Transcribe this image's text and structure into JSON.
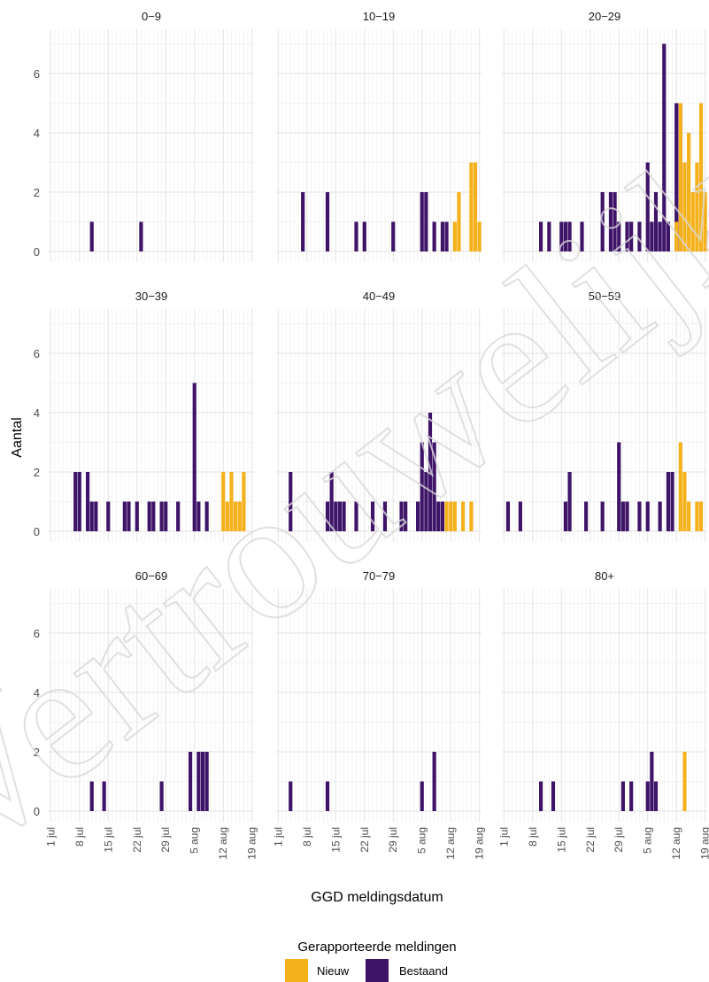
{
  "chart_data": {
    "type": "bar",
    "title": "",
    "xlabel": "GGD meldingsdatum",
    "ylabel": "Aantal",
    "ylim": [
      0,
      7.3
    ],
    "y_ticks": [
      0,
      2,
      4,
      6
    ],
    "x_range": [
      "2020-07-01",
      "2020-08-19"
    ],
    "x_ticks": [
      {
        "date": "2020-07-01",
        "label": "1 jul"
      },
      {
        "date": "2020-07-08",
        "label": "8 jul"
      },
      {
        "date": "2020-07-15",
        "label": "15 jul"
      },
      {
        "date": "2020-07-22",
        "label": "22 jul"
      },
      {
        "date": "2020-07-29",
        "label": "29 jul"
      },
      {
        "date": "2020-08-05",
        "label": "5 aug"
      },
      {
        "date": "2020-08-12",
        "label": "12 aug"
      },
      {
        "date": "2020-08-19",
        "label": "19 aug"
      }
    ],
    "grid": true,
    "layout": "facet 3x3 by age group",
    "legend": {
      "title": "Gerapporteerde meldingen",
      "position": "bottom",
      "entries": [
        {
          "name": "Nieuw",
          "color": "#F5B11C"
        },
        {
          "name": "Bestaand",
          "color": "#3E1468"
        }
      ]
    },
    "colors": {
      "Nieuw": "#F5B11C",
      "Bestaand": "#3E1468"
    },
    "facets": [
      {
        "label": "0−9",
        "series": [
          {
            "name": "Bestaand",
            "points": [
              [
                "2020-07-11",
                1
              ],
              [
                "2020-07-23",
                1
              ]
            ]
          },
          {
            "name": "Nieuw",
            "points": []
          }
        ]
      },
      {
        "label": "10−19",
        "series": [
          {
            "name": "Bestaand",
            "points": [
              [
                "2020-07-07",
                2
              ],
              [
                "2020-07-13",
                2
              ],
              [
                "2020-07-20",
                1
              ],
              [
                "2020-07-22",
                1
              ],
              [
                "2020-07-29",
                1
              ],
              [
                "2020-08-05",
                2
              ],
              [
                "2020-08-06",
                2
              ],
              [
                "2020-08-08",
                1
              ],
              [
                "2020-08-10",
                1
              ],
              [
                "2020-08-11",
                1
              ]
            ]
          },
          {
            "name": "Nieuw",
            "points": [
              [
                "2020-08-13",
                1
              ],
              [
                "2020-08-14",
                2
              ],
              [
                "2020-08-17",
                3
              ],
              [
                "2020-08-18",
                3
              ],
              [
                "2020-08-19",
                1
              ]
            ]
          }
        ]
      },
      {
        "label": "20−29",
        "series": [
          {
            "name": "Bestaand",
            "points": [
              [
                "2020-07-10",
                1
              ],
              [
                "2020-07-12",
                1
              ],
              [
                "2020-07-15",
                1
              ],
              [
                "2020-07-16",
                1
              ],
              [
                "2020-07-17",
                1
              ],
              [
                "2020-07-20",
                1
              ],
              [
                "2020-07-25",
                2
              ],
              [
                "2020-07-27",
                2
              ],
              [
                "2020-07-28",
                2
              ],
              [
                "2020-07-29",
                1
              ],
              [
                "2020-07-31",
                1
              ],
              [
                "2020-08-01",
                1
              ],
              [
                "2020-08-03",
                1
              ],
              [
                "2020-08-05",
                3
              ],
              [
                "2020-08-06",
                1
              ],
              [
                "2020-08-07",
                2
              ],
              [
                "2020-08-08",
                1
              ],
              [
                "2020-08-09",
                7
              ],
              [
                "2020-08-10",
                1
              ],
              [
                "2020-08-12",
                5
              ],
              [
                "2020-08-13",
                5
              ]
            ]
          },
          {
            "name": "Nieuw",
            "points": [
              [
                "2020-08-12",
                1
              ],
              [
                "2020-08-13",
                5
              ],
              [
                "2020-08-14",
                3
              ],
              [
                "2020-08-15",
                4
              ],
              [
                "2020-08-16",
                2
              ],
              [
                "2020-08-17",
                3
              ],
              [
                "2020-08-18",
                5
              ],
              [
                "2020-08-19",
                2
              ]
            ]
          }
        ]
      },
      {
        "label": "30−39",
        "series": [
          {
            "name": "Bestaand",
            "points": [
              [
                "2020-07-07",
                2
              ],
              [
                "2020-07-08",
                2
              ],
              [
                "2020-07-10",
                2
              ],
              [
                "2020-07-11",
                1
              ],
              [
                "2020-07-12",
                1
              ],
              [
                "2020-07-15",
                1
              ],
              [
                "2020-07-19",
                1
              ],
              [
                "2020-07-20",
                1
              ],
              [
                "2020-07-22",
                1
              ],
              [
                "2020-07-25",
                1
              ],
              [
                "2020-07-26",
                1
              ],
              [
                "2020-07-28",
                1
              ],
              [
                "2020-07-29",
                1
              ],
              [
                "2020-08-01",
                1
              ],
              [
                "2020-08-05",
                5
              ],
              [
                "2020-08-06",
                1
              ],
              [
                "2020-08-08",
                1
              ]
            ]
          },
          {
            "name": "Nieuw",
            "points": [
              [
                "2020-08-12",
                2
              ],
              [
                "2020-08-13",
                1
              ],
              [
                "2020-08-14",
                2
              ],
              [
                "2020-08-15",
                1
              ],
              [
                "2020-08-16",
                1
              ],
              [
                "2020-08-17",
                2
              ]
            ]
          }
        ]
      },
      {
        "label": "40−49",
        "series": [
          {
            "name": "Bestaand",
            "points": [
              [
                "2020-07-04",
                2
              ],
              [
                "2020-07-13",
                1
              ],
              [
                "2020-07-14",
                2
              ],
              [
                "2020-07-15",
                1
              ],
              [
                "2020-07-16",
                1
              ],
              [
                "2020-07-17",
                1
              ],
              [
                "2020-07-20",
                1
              ],
              [
                "2020-07-24",
                1
              ],
              [
                "2020-07-27",
                1
              ],
              [
                "2020-07-31",
                1
              ],
              [
                "2020-08-01",
                1
              ],
              [
                "2020-08-04",
                1
              ],
              [
                "2020-08-05",
                3
              ],
              [
                "2020-08-06",
                2
              ],
              [
                "2020-08-07",
                4
              ],
              [
                "2020-08-08",
                3
              ],
              [
                "2020-08-09",
                1
              ],
              [
                "2020-08-10",
                1
              ]
            ]
          },
          {
            "name": "Nieuw",
            "points": [
              [
                "2020-08-11",
                1
              ],
              [
                "2020-08-12",
                1
              ],
              [
                "2020-08-13",
                1
              ],
              [
                "2020-08-15",
                1
              ],
              [
                "2020-08-17",
                1
              ]
            ]
          }
        ]
      },
      {
        "label": "50−59",
        "series": [
          {
            "name": "Bestaand",
            "points": [
              [
                "2020-07-02",
                1
              ],
              [
                "2020-07-05",
                1
              ],
              [
                "2020-07-16",
                1
              ],
              [
                "2020-07-17",
                2
              ],
              [
                "2020-07-21",
                1
              ],
              [
                "2020-07-25",
                1
              ],
              [
                "2020-07-29",
                3
              ],
              [
                "2020-07-30",
                1
              ],
              [
                "2020-07-31",
                1
              ],
              [
                "2020-08-03",
                1
              ],
              [
                "2020-08-05",
                1
              ],
              [
                "2020-08-08",
                1
              ],
              [
                "2020-08-10",
                2
              ],
              [
                "2020-08-11",
                2
              ]
            ]
          },
          {
            "name": "Nieuw",
            "points": [
              [
                "2020-08-13",
                3
              ],
              [
                "2020-08-14",
                2
              ],
              [
                "2020-08-15",
                1
              ],
              [
                "2020-08-17",
                1
              ],
              [
                "2020-08-18",
                1
              ]
            ]
          }
        ]
      },
      {
        "label": "60−69",
        "series": [
          {
            "name": "Bestaand",
            "points": [
              [
                "2020-07-11",
                1
              ],
              [
                "2020-07-14",
                1
              ],
              [
                "2020-07-28",
                1
              ],
              [
                "2020-08-04",
                2
              ],
              [
                "2020-08-06",
                2
              ],
              [
                "2020-08-07",
                2
              ],
              [
                "2020-08-08",
                2
              ]
            ]
          },
          {
            "name": "Nieuw",
            "points": []
          }
        ]
      },
      {
        "label": "70−79",
        "series": [
          {
            "name": "Bestaand",
            "points": [
              [
                "2020-07-04",
                1
              ],
              [
                "2020-07-13",
                1
              ],
              [
                "2020-08-05",
                1
              ],
              [
                "2020-08-08",
                2
              ]
            ]
          },
          {
            "name": "Nieuw",
            "points": []
          }
        ]
      },
      {
        "label": "80+",
        "series": [
          {
            "name": "Bestaand",
            "points": [
              [
                "2020-07-10",
                1
              ],
              [
                "2020-07-13",
                1
              ],
              [
                "2020-07-30",
                1
              ],
              [
                "2020-08-01",
                1
              ],
              [
                "2020-08-05",
                1
              ],
              [
                "2020-08-06",
                2
              ],
              [
                "2020-08-07",
                1
              ]
            ]
          },
          {
            "name": "Nieuw",
            "points": [
              [
                "2020-08-14",
                2
              ]
            ]
          }
        ]
      }
    ]
  },
  "watermark": {
    "text": "Vertrouwelijk"
  }
}
